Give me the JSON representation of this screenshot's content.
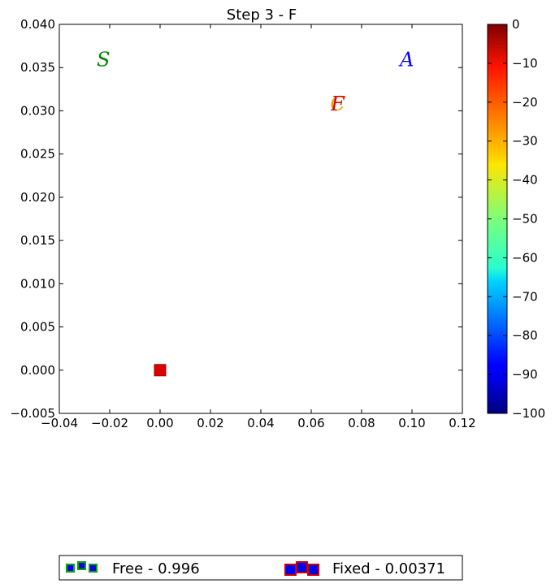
{
  "chart_data": {
    "type": "scatter",
    "title": "Step 3 - F",
    "xlabel": "",
    "ylabel": "",
    "xlim": [
      -0.04,
      0.12
    ],
    "ylim": [
      -0.005,
      0.04
    ],
    "x_ticks": [
      "−0.04",
      "−0.02",
      "0.00",
      "0.02",
      "0.04",
      "0.06",
      "0.08",
      "0.10",
      "0.12"
    ],
    "y_ticks": [
      "−0.005",
      "0.000",
      "0.005",
      "0.010",
      "0.015",
      "0.020",
      "0.025",
      "0.030",
      "0.035",
      "0.040"
    ],
    "grid": false,
    "points": [
      {
        "x": 0.0,
        "y": 0.0,
        "marker": "square",
        "color": "#dd0000"
      }
    ],
    "annotations": [
      {
        "text": "S",
        "x": -0.0225,
        "y": 0.0359,
        "color": "#008800"
      },
      {
        "text": "A",
        "x": 0.098,
        "y": 0.0359,
        "color": "#0000ff"
      },
      {
        "text": "C",
        "x": 0.0705,
        "y": 0.0308,
        "color": "#e8a000"
      },
      {
        "text": "F",
        "x": 0.0705,
        "y": 0.0308,
        "color": "#dd0000"
      }
    ],
    "colorbar": {
      "range": [
        -100,
        0
      ],
      "ticks": [
        "0",
        "−10",
        "−20",
        "−30",
        "−40",
        "−50",
        "−60",
        "−70",
        "−80",
        "−90",
        "−100"
      ],
      "colormap": "jet"
    },
    "legend": {
      "placement": "bottom",
      "entries": [
        {
          "label": "Free - 0.996",
          "fill": "#0000ee",
          "edge": "#00aa00"
        },
        {
          "label": "Fixed - 0.00371",
          "fill": "#0000ee",
          "edge": "#cc0000"
        }
      ]
    }
  }
}
